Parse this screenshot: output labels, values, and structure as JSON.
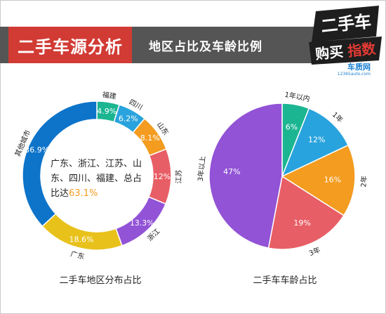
{
  "header": {
    "title": "二手车源分析",
    "subtitle": "地区占比及车龄比例",
    "logo_line1": "二手车",
    "logo_line2a": "购买",
    "logo_line2b": "指数",
    "logo_brand": "车质网",
    "logo_url": "12365auto.com"
  },
  "colors": {
    "accent_red": "#d13b34",
    "header_gray": "#555555",
    "highlight_orange": "#f39c1f"
  },
  "chart_data": [
    {
      "type": "pie",
      "variant": "donut",
      "caption": "二手车地区分布占比",
      "center_text": "广东、浙江、江苏、山东、四川、福建、总占比达",
      "center_value": "63.1%",
      "slices": [
        {
          "label": "福建",
          "value": 4.9,
          "value_label": "4.9%",
          "color": "#1bb591"
        },
        {
          "label": "四川",
          "value": 6.2,
          "value_label": "6.2%",
          "color": "#29a3dd"
        },
        {
          "label": "山东",
          "value": 8.1,
          "value_label": "8.1%",
          "color": "#f39c1f"
        },
        {
          "label": "江苏",
          "value": 12,
          "value_label": "12%",
          "color": "#e85e66"
        },
        {
          "label": "浙江",
          "value": 13.3,
          "value_label": "13.3%",
          "color": "#9253d6"
        },
        {
          "label": "广东",
          "value": 18.6,
          "value_label": "18.6%",
          "color": "#e8c11b"
        },
        {
          "label": "其他城市",
          "value": 36.9,
          "value_label": "36.9%",
          "color": "#0d74c9"
        }
      ]
    },
    {
      "type": "pie",
      "caption": "二手车车龄占比",
      "slices": [
        {
          "label": "1年以内",
          "value": 6,
          "value_label": "6%",
          "color": "#1bb591"
        },
        {
          "label": "1年",
          "value": 12,
          "value_label": "12%",
          "color": "#29a3dd"
        },
        {
          "label": "2年",
          "value": 16,
          "value_label": "16%",
          "color": "#f39c1f"
        },
        {
          "label": "3年",
          "value": 19,
          "value_label": "19%",
          "color": "#e85e66"
        },
        {
          "label": "3年以上",
          "value": 47,
          "value_label": "47%",
          "color": "#9253d6"
        }
      ]
    }
  ]
}
